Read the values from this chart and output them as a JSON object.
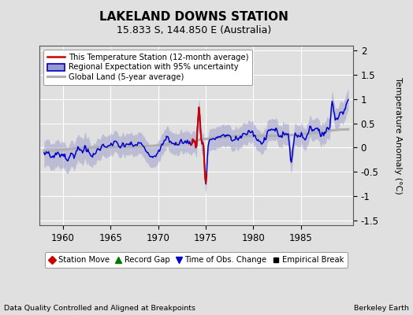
{
  "title": "LAKELAND DOWNS STATION",
  "subtitle": "15.833 S, 144.850 E (Australia)",
  "ylabel": "Temperature Anomaly (°C)",
  "xlabel_note": "Data Quality Controlled and Aligned at Breakpoints",
  "credit": "Berkeley Earth",
  "xlim": [
    1957.5,
    1990.5
  ],
  "ylim": [
    -1.6,
    2.1
  ],
  "yticks": [
    -1.5,
    -1.0,
    -0.5,
    0.0,
    0.5,
    1.0,
    1.5,
    2.0
  ],
  "xticks": [
    1960,
    1965,
    1970,
    1975,
    1980,
    1985
  ],
  "bg_color": "#e0e0e0",
  "plot_bg_color": "#e0e0e0",
  "uncertainty_color": "#9999cc",
  "uncertainty_alpha": 0.5,
  "regional_color": "#0000cc",
  "station_color": "#cc0000",
  "global_color": "#b0b0b0",
  "title_fontsize": 11,
  "subtitle_fontsize": 9,
  "axis_fontsize": 8,
  "tick_fontsize": 8.5
}
